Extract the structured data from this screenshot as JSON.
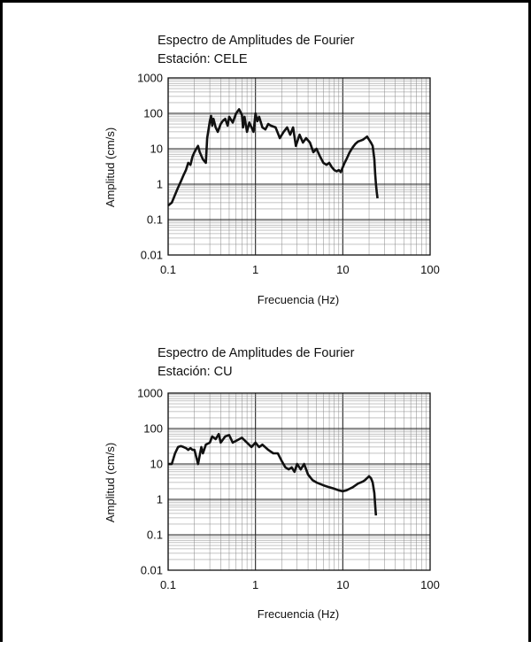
{
  "colors": {
    "line": "#111111",
    "grid_major": "#222222",
    "grid_minor": "#888888",
    "background": "#ffffff"
  },
  "chart_data": [
    {
      "type": "line",
      "title": "Espectro de Amplitudes de Fourier",
      "subtitle": "Estación: CELE",
      "xlabel": "Frecuencia (Hz)",
      "ylabel": "Amplitud (cm/s)",
      "x_scale": "log",
      "y_scale": "log",
      "xlim": [
        0.1,
        100
      ],
      "ylim": [
        0.01,
        1000
      ],
      "x_tick_labels": [
        "0.1",
        "1",
        "10",
        "100"
      ],
      "y_tick_labels": [
        "1000",
        "100",
        "10",
        "1",
        "0.1",
        "0.01"
      ],
      "grid": true,
      "series": [
        {
          "x": [
            0.1,
            0.11,
            0.12,
            0.13,
            0.14,
            0.15,
            0.16,
            0.17,
            0.18,
            0.19,
            0.2,
            0.21,
            0.22,
            0.23,
            0.25,
            0.27,
            0.28,
            0.3,
            0.31,
            0.32,
            0.33,
            0.35,
            0.37,
            0.4,
            0.42,
            0.45,
            0.48,
            0.5,
            0.55,
            0.6,
            0.65,
            0.7,
            0.72,
            0.75,
            0.8,
            0.85,
            0.9,
            0.95,
            1.0,
            1.05,
            1.1,
            1.2,
            1.3,
            1.4,
            1.5,
            1.7,
            1.9,
            2.1,
            2.3,
            2.5,
            2.7,
            2.9,
            3.2,
            3.5,
            3.8,
            4.2,
            4.6,
            5.0,
            5.5,
            6.0,
            6.5,
            7.0,
            7.5,
            8.0,
            8.5,
            9.0,
            9.5,
            10.0,
            10.5,
            11,
            12,
            13,
            14,
            15,
            16,
            17,
            18,
            19,
            20,
            21,
            22,
            23,
            23.5,
            24,
            24.5,
            25
          ],
          "y": [
            0.25,
            0.3,
            0.5,
            0.8,
            1.2,
            1.8,
            2.5,
            4,
            3.5,
            6,
            8,
            10,
            12,
            8,
            5,
            4,
            20,
            60,
            85,
            45,
            70,
            40,
            30,
            50,
            60,
            70,
            45,
            80,
            55,
            100,
            130,
            90,
            40,
            80,
            30,
            55,
            40,
            30,
            100,
            60,
            80,
            40,
            35,
            50,
            45,
            40,
            20,
            30,
            40,
            25,
            40,
            12,
            25,
            15,
            20,
            15,
            8,
            10,
            6,
            4,
            3.5,
            4,
            3,
            2.5,
            2.3,
            2.5,
            2.2,
            3,
            4,
            5,
            8,
            11,
            14,
            16,
            17,
            18,
            20,
            22,
            18,
            15,
            12,
            5,
            2,
            1,
            0.6,
            0.4
          ]
        }
      ]
    },
    {
      "type": "line",
      "title": "Espectro de Amplitudes de Fourier",
      "subtitle": "Estación: CU",
      "xlabel": "Frecuencia (Hz)",
      "ylabel": "Amplitud (cm/s)",
      "x_scale": "log",
      "y_scale": "log",
      "xlim": [
        0.1,
        100
      ],
      "ylim": [
        0.01,
        1000
      ],
      "x_tick_labels": [
        "0.1",
        "1",
        "10",
        "100"
      ],
      "y_tick_labels": [
        "1000",
        "100",
        "10",
        "1",
        "0.1",
        "0.01"
      ],
      "grid": true,
      "series": [
        {
          "x": [
            0.1,
            0.11,
            0.12,
            0.13,
            0.14,
            0.15,
            0.16,
            0.17,
            0.18,
            0.19,
            0.2,
            0.22,
            0.24,
            0.25,
            0.27,
            0.3,
            0.32,
            0.35,
            0.38,
            0.4,
            0.45,
            0.5,
            0.55,
            0.6,
            0.7,
            0.8,
            0.9,
            1.0,
            1.1,
            1.2,
            1.4,
            1.6,
            1.8,
            2.0,
            2.2,
            2.4,
            2.6,
            2.8,
            3.0,
            3.3,
            3.6,
            4.0,
            4.5,
            5.0,
            6.0,
            7.0,
            8.0,
            9.0,
            10,
            11,
            12,
            13,
            14,
            15,
            16,
            17,
            18,
            19,
            20,
            21,
            22,
            23,
            23.5,
            24
          ],
          "y": [
            10,
            10,
            20,
            30,
            32,
            30,
            28,
            25,
            28,
            25,
            25,
            10,
            30,
            20,
            35,
            40,
            60,
            50,
            70,
            40,
            60,
            65,
            40,
            45,
            55,
            40,
            30,
            40,
            30,
            35,
            25,
            20,
            20,
            12,
            8,
            7,
            8,
            6,
            10,
            7,
            10,
            5,
            3.5,
            3,
            2.5,
            2.2,
            2.0,
            1.8,
            1.7,
            1.8,
            2.0,
            2.2,
            2.5,
            2.8,
            3.0,
            3.2,
            3.5,
            4.0,
            4.5,
            4.0,
            3.0,
            1.5,
            0.7,
            0.35
          ]
        }
      ]
    }
  ]
}
